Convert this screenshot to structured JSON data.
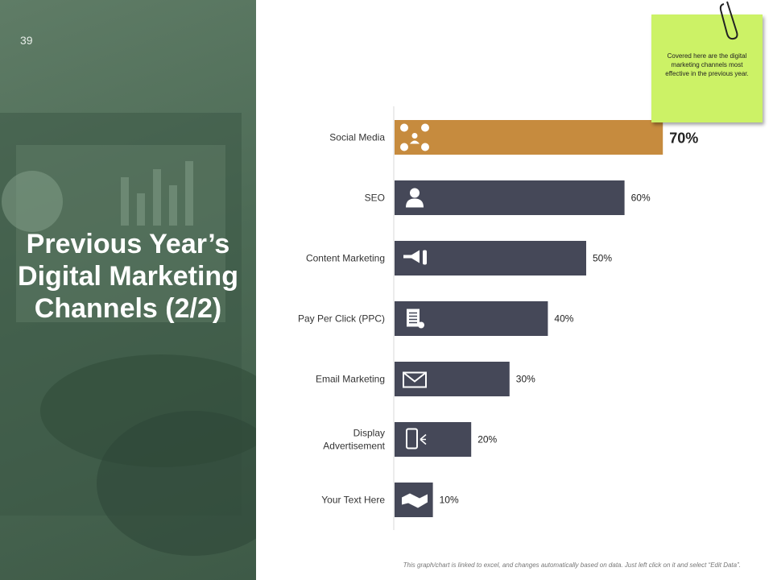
{
  "slide": {
    "number": "39",
    "title": "Previous Year’s Digital Marketing Channels (2/2)"
  },
  "note": {
    "text": "Covered here are the digital marketing channels most effective  in the previous year."
  },
  "footer": {
    "text": "This graph/chart is linked to excel, and changes automatically based on data. Just left click on it and select “Edit Data”."
  },
  "colors": {
    "highlight": "#c68b3e",
    "bar": "#454858",
    "note": "#ccf266",
    "panel": "#4d6b56"
  },
  "chart_data": {
    "type": "bar",
    "orientation": "horizontal",
    "categories": [
      "Social Media",
      "SEO",
      "Content Marketing",
      "Pay Per Click (PPC)",
      "Email Marketing",
      "Display Advertisement",
      "Your Text Here"
    ],
    "values": [
      70,
      60,
      50,
      40,
      30,
      20,
      10
    ],
    "labels": [
      "70%",
      "60%",
      "50%",
      "40%",
      "30%",
      "20%",
      "10%"
    ],
    "icons": [
      "social-network-icon",
      "user-icon",
      "megaphone-icon",
      "document-icon",
      "email-icon",
      "mobile-ad-icon",
      "handshake-icon"
    ],
    "highlight_index": 0,
    "xlim": [
      0,
      100
    ],
    "title": "",
    "xlabel": "",
    "ylabel": ""
  }
}
